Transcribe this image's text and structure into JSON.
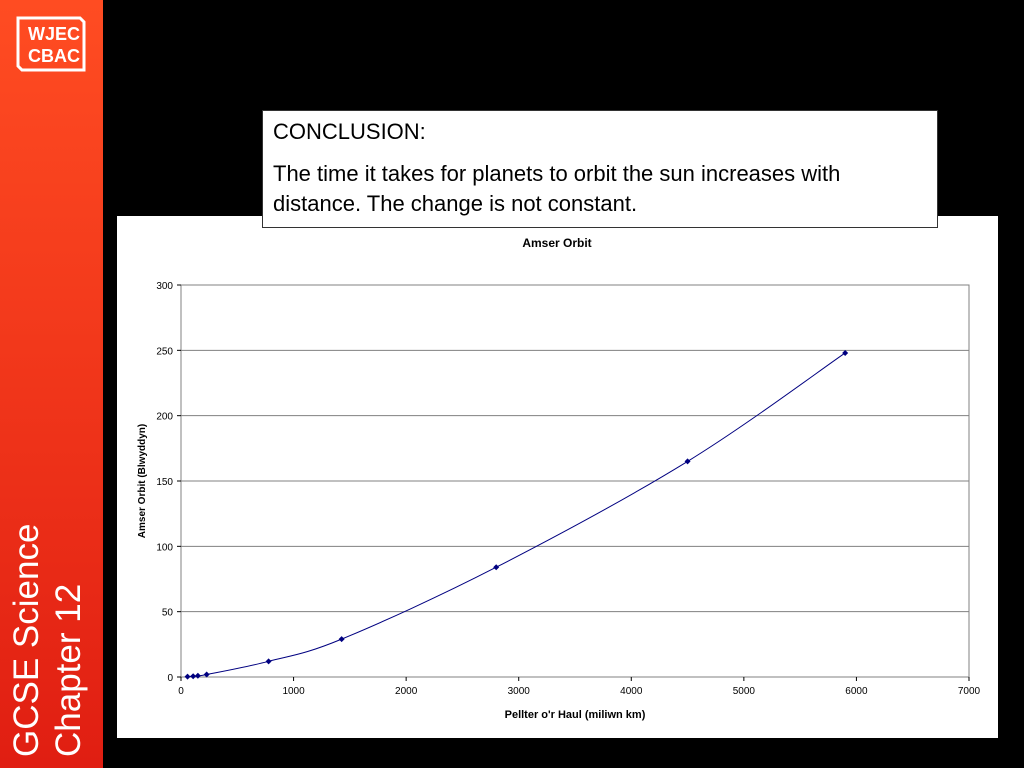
{
  "branding": {
    "logo_line1": "WJEC",
    "logo_line2": "CBAC",
    "vertical_line1": "GCSE  Science",
    "vertical_line2": "Chapter 12"
  },
  "conclusion": {
    "heading": "CONCLUSION:",
    "text": "The time it takes for planets to orbit the sun increases with distance. The change is not constant."
  },
  "colors": {
    "series": "#000080",
    "sidebar": "#f2381b",
    "background": "#000000"
  },
  "chart_data": {
    "type": "scatter",
    "title": "Amser Orbit",
    "xlabel": "Pellter o'r Haul (miliwn km)",
    "ylabel": "Amser Orbit (Blwyddyn)",
    "xlim": [
      0,
      7000
    ],
    "ylim": [
      0,
      300
    ],
    "xticks": [
      0,
      1000,
      2000,
      3000,
      4000,
      5000,
      6000,
      7000
    ],
    "yticks": [
      0,
      50,
      100,
      150,
      200,
      250,
      300
    ],
    "grid": "horizontal",
    "line": "smooth",
    "series": [
      {
        "x": [
          58,
          108,
          150,
          228,
          778,
          1427,
          2800,
          4500,
          5900
        ],
        "y": [
          0.24,
          0.62,
          1,
          1.9,
          12,
          29,
          84,
          165,
          248
        ]
      }
    ]
  }
}
